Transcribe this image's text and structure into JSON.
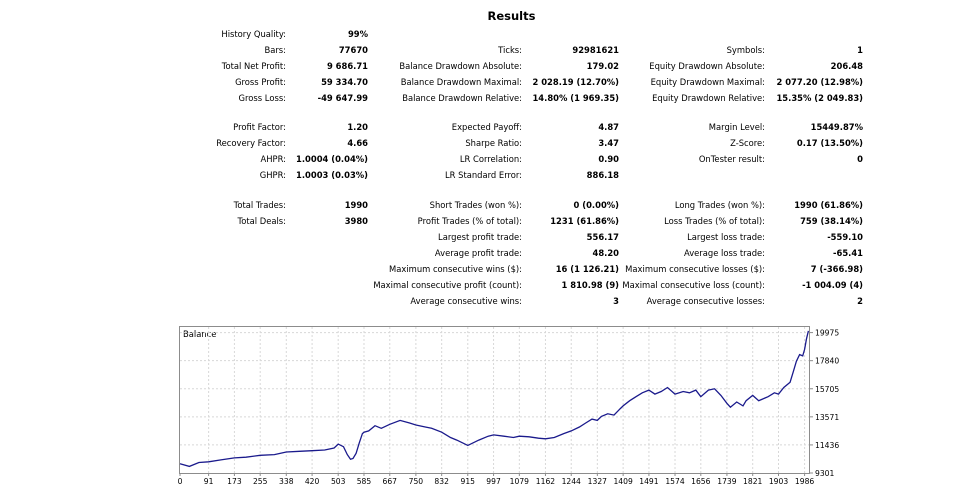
{
  "title": "Results",
  "history_quality": {
    "label": "History Quality:",
    "value": "99%"
  },
  "rows": [
    {
      "col1": {
        "label": "Bars:",
        "value": "77670"
      },
      "col2": {
        "label": "Ticks:",
        "value": "92981621"
      },
      "col3": {
        "label": "Symbols:",
        "value": "1"
      }
    },
    {
      "col1": {
        "label": "Total Net Profit:",
        "value": "9 686.71"
      },
      "col2": {
        "label": "Balance Drawdown Absolute:",
        "value": "179.02"
      },
      "col3": {
        "label": "Equity Drawdown Absolute:",
        "value": "206.48"
      }
    },
    {
      "col1": {
        "label": "Gross Profit:",
        "value": "59 334.70"
      },
      "col2": {
        "label": "Balance Drawdown Maximal:",
        "value": "2 028.19 (12.70%)"
      },
      "col3": {
        "label": "Equity Drawdown Maximal:",
        "value": "2 077.20 (12.98%)"
      }
    },
    {
      "col1": {
        "label": "Gross Loss:",
        "value": "-49 647.99"
      },
      "col2": {
        "label": "Balance Drawdown Relative:",
        "value": "14.80% (1 969.35)"
      },
      "col3": {
        "label": "Equity Drawdown Relative:",
        "value": "15.35% (2 049.83)"
      }
    },
    {
      "col1": {
        "label": "Profit Factor:",
        "value": "1.20"
      },
      "col2": {
        "label": "Expected Payoff:",
        "value": "4.87"
      },
      "col3": {
        "label": "Margin Level:",
        "value": "15449.87%"
      }
    },
    {
      "col1": {
        "label": "Recovery Factor:",
        "value": "4.66"
      },
      "col2": {
        "label": "Sharpe Ratio:",
        "value": "3.47"
      },
      "col3": {
        "label": "Z-Score:",
        "value": "0.17 (13.50%)"
      }
    },
    {
      "col1": {
        "label": "AHPR:",
        "value": "1.0004 (0.04%)"
      },
      "col2": {
        "label": "LR Correlation:",
        "value": "0.90"
      },
      "col3": {
        "label": "OnTester result:",
        "value": "0"
      }
    },
    {
      "col1": {
        "label": "GHPR:",
        "value": "1.0003 (0.03%)"
      },
      "col2": {
        "label": "LR Standard Error:",
        "value": "886.18"
      }
    },
    {
      "col1": {
        "label": "Total Trades:",
        "value": "1990"
      },
      "col2": {
        "label": "Short Trades (won %):",
        "value": "0 (0.00%)"
      },
      "col3": {
        "label": "Long Trades (won %):",
        "value": "1990 (61.86%)"
      }
    },
    {
      "col1": {
        "label": "Total Deals:",
        "value": "3980"
      },
      "col2": {
        "label": "Profit Trades (% of total):",
        "value": "1231 (61.86%)"
      },
      "col3": {
        "label": "Loss Trades (% of total):",
        "value": "759 (38.14%)"
      }
    },
    {
      "col2": {
        "label": "Largest profit trade:",
        "value": "556.17"
      },
      "col3": {
        "label": "Largest loss trade:",
        "value": "-559.10"
      }
    },
    {
      "col2": {
        "label": "Average profit trade:",
        "value": "48.20"
      },
      "col3": {
        "label": "Average loss trade:",
        "value": "-65.41"
      }
    },
    {
      "col2": {
        "label": "Maximum consecutive wins ($):",
        "value": "16 (1 126.21)"
      },
      "col3": {
        "label": "Maximum consecutive losses ($):",
        "value": "7 (-366.98)"
      }
    },
    {
      "col2": {
        "label": "Maximal consecutive profit (count):",
        "value": "1 810.98 (9)"
      },
      "col3": {
        "label": "Maximal consecutive loss (count):",
        "value": "-1 004.09 (4)"
      }
    },
    {
      "col2": {
        "label": "Average consecutive wins:",
        "value": "3"
      },
      "col3": {
        "label": "Average consecutive losses:",
        "value": "2"
      }
    }
  ],
  "chart_data": {
    "type": "line",
    "title": "Balance",
    "xlabel": "",
    "ylabel": "",
    "grid": true,
    "line_color": "#1a1a8c",
    "x_ticks": [
      0,
      91,
      173,
      255,
      338,
      420,
      503,
      585,
      667,
      750,
      832,
      915,
      997,
      1079,
      1162,
      1244,
      1327,
      1409,
      1491,
      1574,
      1656,
      1739,
      1821,
      1903,
      1986
    ],
    "y_ticks": [
      9301,
      11436,
      13571,
      15705,
      17840,
      19975
    ],
    "xlim": [
      0,
      2000
    ],
    "ylim": [
      9301,
      20400
    ],
    "series": [
      {
        "name": "Balance",
        "x": [
          0,
          30,
          60,
          91,
          130,
          173,
          210,
          255,
          300,
          338,
          380,
          420,
          460,
          490,
          503,
          520,
          532,
          542,
          550,
          560,
          570,
          580,
          585,
          600,
          620,
          640,
          667,
          700,
          730,
          750,
          780,
          800,
          832,
          860,
          880,
          915,
          950,
          980,
          997,
          1030,
          1060,
          1079,
          1110,
          1140,
          1162,
          1190,
          1220,
          1244,
          1270,
          1290,
          1310,
          1327,
          1340,
          1360,
          1380,
          1400,
          1409,
          1430,
          1450,
          1470,
          1491,
          1510,
          1530,
          1550,
          1574,
          1600,
          1620,
          1640,
          1656,
          1680,
          1700,
          1720,
          1739,
          1750,
          1770,
          1790,
          1800,
          1821,
          1840,
          1860,
          1870,
          1890,
          1903,
          1920,
          1940,
          1950,
          1960,
          1970,
          1980,
          1986,
          1992,
          1998
        ],
        "y": [
          10000,
          9800,
          10100,
          10150,
          10300,
          10450,
          10500,
          10650,
          10700,
          10900,
          10950,
          11000,
          11050,
          11200,
          11500,
          11300,
          10700,
          10350,
          10400,
          10800,
          11600,
          12300,
          12400,
          12500,
          12900,
          12700,
          13000,
          13300,
          13100,
          12950,
          12800,
          12700,
          12400,
          12000,
          11800,
          11400,
          11800,
          12100,
          12200,
          12100,
          12000,
          12100,
          12050,
          11950,
          11900,
          12000,
          12300,
          12500,
          12800,
          13100,
          13400,
          13300,
          13600,
          13800,
          13700,
          14200,
          14400,
          14800,
          15100,
          15400,
          15600,
          15300,
          15500,
          15800,
          15300,
          15500,
          15400,
          15600,
          15100,
          15600,
          15700,
          15200,
          14600,
          14300,
          14700,
          14400,
          14800,
          15200,
          14800,
          15000,
          15100,
          15400,
          15300,
          15800,
          16200,
          17000,
          17800,
          18300,
          18200,
          18700,
          19500,
          20100
        ]
      }
    ]
  }
}
